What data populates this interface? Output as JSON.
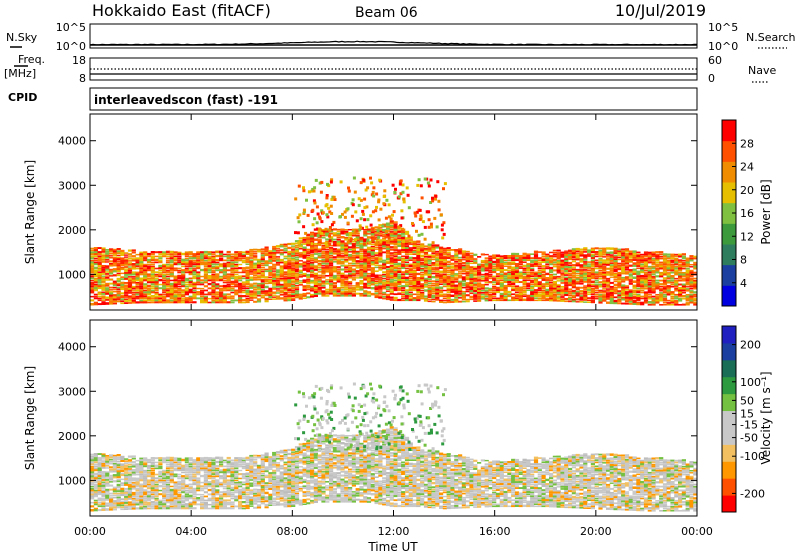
{
  "header": {
    "title": "Hokkaido East (fitACF)",
    "beam": "Beam 06",
    "date": "10/Jul/2019"
  },
  "small_panels": {
    "nsky_label": "N.Sky",
    "nsky_ticks": [
      "10^5",
      "10^0"
    ],
    "nsearch_label": "N.Search",
    "nsearch_ticks": [
      "10^5",
      "10^0"
    ],
    "freq_label": "Freq.",
    "freq_unit": "[MHz]",
    "freq_ticks": [
      "18",
      "8"
    ],
    "nave_label": "Nave",
    "nave_ticks": [
      "60",
      "0"
    ],
    "cpid_label": "CPID",
    "cpid_value": "interleavedscon (fast) -191"
  },
  "colors": {
    "power": [
      "#0000e0",
      "#1a3fa0",
      "#2e7d5e",
      "#3c9a3c",
      "#7fc040",
      "#e6c000",
      "#f08c00",
      "#ff5000",
      "#ff0000"
    ],
    "velocity": [
      "#ff0000",
      "#ff5000",
      "#ff9800",
      "#f2c060",
      "#c8c8c8",
      "#c8c8c8",
      "#74c040",
      "#2e9a40",
      "#1a6e55",
      "#1a3fa0",
      "#2020c0"
    ]
  },
  "chart_data": [
    {
      "type": "heatmap",
      "name": "power",
      "ylabel": "Slant Range [km]",
      "yticks": [
        "1000",
        "2000",
        "3000",
        "4000"
      ],
      "ylim": [
        200,
        4600
      ],
      "xlim": [
        "00:00",
        "24:00"
      ],
      "colorbar_label": "Power [dB]",
      "colorbar_ticks": [
        "4",
        "8",
        "12",
        "16",
        "20",
        "24",
        "28"
      ],
      "colorbar_range": [
        0,
        32
      ],
      "echo_band": {
        "hours": [
          0,
          2,
          4,
          6,
          8,
          9,
          10,
          11,
          12,
          13,
          14,
          16,
          18,
          20,
          22,
          24
        ],
        "lower_km": [
          300,
          350,
          350,
          350,
          400,
          500,
          500,
          500,
          400,
          400,
          350,
          400,
          400,
          350,
          300,
          300
        ],
        "upper_km": [
          1600,
          1500,
          1500,
          1500,
          1700,
          2000,
          2000,
          2000,
          2200,
          1700,
          1600,
          1400,
          1500,
          1600,
          1500,
          1400
        ]
      },
      "typical_power_db": 26
    },
    {
      "type": "heatmap",
      "name": "velocity",
      "ylabel": "Slant Range [km]",
      "yticks": [
        "1000",
        "2000",
        "3000",
        "4000"
      ],
      "ylim": [
        200,
        4600
      ],
      "xlabel": "Time UT",
      "xticks": [
        "00:00",
        "04:00",
        "08:00",
        "12:00",
        "16:00",
        "20:00",
        "00:00"
      ],
      "colorbar_label": "Velocity [m s⁻¹]",
      "colorbar_ticks": [
        "-200",
        "-100",
        "-50",
        "-15",
        "15",
        "50",
        "100",
        "200"
      ],
      "colorbar_range": [
        -250,
        250
      ],
      "typical_velocity_ms": 0
    }
  ]
}
